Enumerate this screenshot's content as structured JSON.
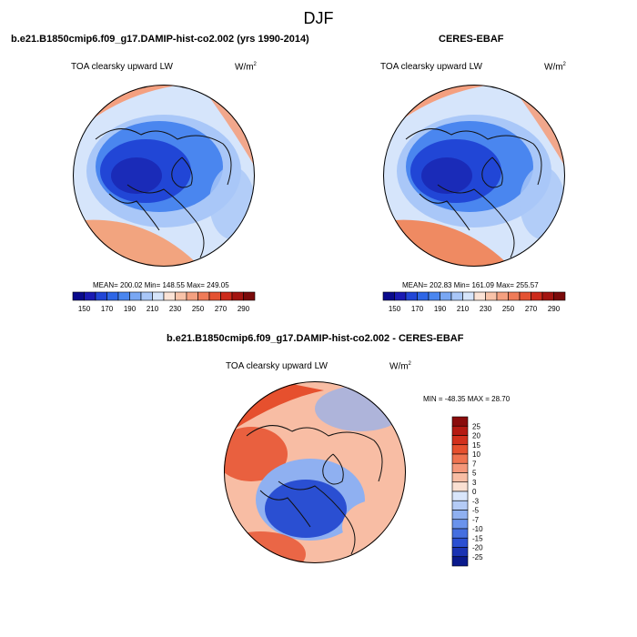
{
  "main_title": "DJF",
  "panels": [
    {
      "title": "b.e21.B1850cmip6.f09_g17.DAMIP-hist-co2.002 (yrs 1990-2014)",
      "variable": "TOA clearsky upward LW",
      "units": "W/m",
      "units_sup": "2",
      "stats": "MEAN= 200.02  Min= 148.55  Max= 249.05"
    },
    {
      "title": "CERES-EBAF",
      "variable": "TOA clearsky upward LW",
      "units": "W/m",
      "units_sup": "2",
      "stats": "MEAN= 202.83  Min= 161.09  Max= 255.57"
    },
    {
      "title": "b.e21.B1850cmip6.f09_g17.DAMIP-hist-co2.002 - CERES-EBAF",
      "variable": "TOA clearsky upward LW",
      "units": "W/m",
      "units_sup": "2",
      "stats": "MIN = -48.35  MAX =  28.70"
    }
  ],
  "colorbar_abs": {
    "labels": [
      "150",
      "170",
      "190",
      "210",
      "230",
      "250",
      "270",
      "290"
    ],
    "colors": [
      "#0a0a8c",
      "#1a1ab3",
      "#2146d6",
      "#2e66e6",
      "#4a86ef",
      "#79a7f3",
      "#a9c7f8",
      "#d6e5fb",
      "#fbe3d6",
      "#f8c3a9",
      "#f4a080",
      "#ef7b58",
      "#e45232",
      "#cc2a1a",
      "#a31410",
      "#7a0a0a"
    ]
  },
  "colorbar_diff": {
    "labels": [
      "25",
      "20",
      "15",
      "10",
      "7",
      "5",
      "3",
      "0",
      "-3",
      "-5",
      "-7",
      "-10",
      "-15",
      "-20",
      "-25"
    ],
    "colors": [
      "#8a0c0c",
      "#b51a12",
      "#d2301c",
      "#e6502e",
      "#ef7350",
      "#f4977a",
      "#f8bda4",
      "#fbe0d2",
      "#d9e6fb",
      "#b4cbf6",
      "#8fb0f1",
      "#6a93ec",
      "#456fe0",
      "#2a4fd2",
      "#1a33b3",
      "#0a1a8c"
    ]
  },
  "map_colors": {
    "ocean_ne": "#f4a080",
    "sw_land": "#f2a47f",
    "arctic": "#2146d6",
    "deep_arctic": "#1a2bb8",
    "mid": "#4a86ef",
    "light": "#a9c7f8",
    "pale": "#d6e5fb",
    "diff_red": "#e6502e",
    "diff_pale_red": "#f8bda4",
    "diff_blue": "#2a4fd2",
    "diff_light_blue": "#8fb0f1"
  }
}
